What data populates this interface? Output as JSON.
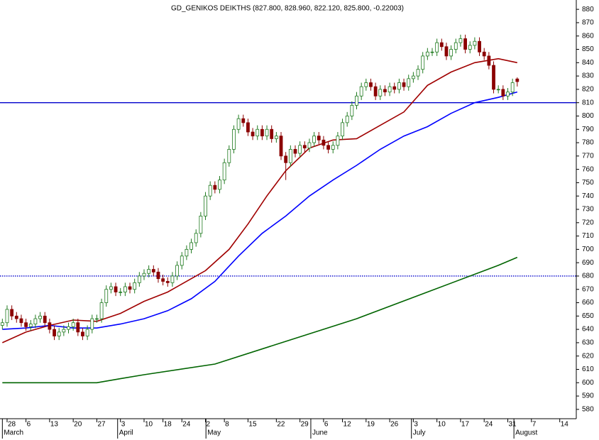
{
  "chart_data": {
    "type": "candlestick",
    "title": "GD_GENIKOS DEIKTHS (827.800, 828.960, 822.120, 825.800, -0.22003)",
    "xlim": [
      -0.5,
      121.5
    ],
    "ylim": [
      573,
      887
    ],
    "yticks": [
      580,
      590,
      600,
      610,
      620,
      630,
      640,
      650,
      660,
      670,
      680,
      690,
      700,
      710,
      720,
      730,
      740,
      750,
      760,
      770,
      780,
      790,
      800,
      810,
      820,
      830,
      840,
      850,
      860,
      870,
      880
    ],
    "xticks": [
      {
        "value": 1,
        "label": "28"
      },
      {
        "value": 5,
        "label": "6"
      },
      {
        "value": 10,
        "label": "13"
      },
      {
        "value": 15,
        "label": "20"
      },
      {
        "value": 20,
        "label": "27"
      },
      {
        "value": 25,
        "label": "3"
      },
      {
        "value": 30,
        "label": "10"
      },
      {
        "value": 34,
        "label": "18"
      },
      {
        "value": 38,
        "label": "24"
      },
      {
        "value": 43,
        "label": "2"
      },
      {
        "value": 47,
        "label": "8"
      },
      {
        "value": 52,
        "label": "15"
      },
      {
        "value": 58,
        "label": "22"
      },
      {
        "value": 63,
        "label": "29"
      },
      {
        "value": 68,
        "label": "6"
      },
      {
        "value": 72,
        "label": "12"
      },
      {
        "value": 77,
        "label": "19"
      },
      {
        "value": 82,
        "label": "26"
      },
      {
        "value": 87,
        "label": "3"
      },
      {
        "value": 92,
        "label": "10"
      },
      {
        "value": 97,
        "label": "17"
      },
      {
        "value": 102,
        "label": "24"
      },
      {
        "value": 107,
        "label": "31"
      },
      {
        "value": 112,
        "label": "7"
      },
      {
        "value": 118,
        "label": "14"
      }
    ],
    "month_labels": [
      {
        "value": 0,
        "label": "March"
      },
      {
        "value": 24.4,
        "label": "April"
      },
      {
        "value": 43.1,
        "label": "May"
      },
      {
        "value": 65.3,
        "label": "June"
      },
      {
        "value": 86.6,
        "label": "July"
      },
      {
        "value": 108.3,
        "label": "August"
      }
    ],
    "up_color": "#1f7a1f",
    "down_color": "#8b0000",
    "open": [
      643,
      645,
      655,
      650,
      648,
      645,
      642,
      644,
      648,
      650,
      645,
      640,
      635,
      638,
      640,
      642,
      645,
      638,
      635,
      640,
      648,
      648,
      660,
      670,
      672,
      668,
      668,
      672,
      670,
      675,
      680,
      682,
      685,
      683,
      678,
      676,
      675,
      680,
      688,
      695,
      700,
      705,
      712,
      725,
      740,
      748,
      745,
      752,
      765,
      775,
      790,
      798,
      795,
      788,
      785,
      790,
      785,
      790,
      783,
      785,
      770,
      765,
      775,
      772,
      778,
      776,
      780,
      785,
      782,
      778,
      775,
      778,
      785,
      795,
      800,
      808,
      815,
      822,
      825,
      822,
      815,
      820,
      818,
      822,
      820,
      825,
      822,
      828,
      830,
      835,
      845,
      848,
      848,
      855,
      852,
      845,
      850,
      855,
      858,
      850,
      853,
      856,
      848,
      845,
      838,
      820,
      820,
      815,
      818,
      827.8
    ],
    "high": [
      648,
      658,
      658,
      653,
      651,
      648,
      647,
      651,
      653,
      653,
      648,
      643,
      641,
      643,
      645,
      648,
      648,
      641,
      643,
      651,
      651,
      663,
      673,
      675,
      675,
      671,
      675,
      675,
      678,
      683,
      685,
      688,
      688,
      686,
      681,
      679,
      683,
      691,
      698,
      703,
      708,
      715,
      728,
      743,
      751,
      751,
      755,
      768,
      778,
      793,
      801,
      801,
      798,
      791,
      793,
      793,
      793,
      793,
      788,
      788,
      773,
      778,
      778,
      781,
      781,
      783,
      788,
      788,
      785,
      781,
      781,
      788,
      798,
      803,
      811,
      818,
      825,
      828,
      828,
      825,
      823,
      823,
      825,
      825,
      828,
      828,
      831,
      833,
      838,
      848,
      851,
      851,
      858,
      858,
      855,
      853,
      858,
      861,
      861,
      856,
      859,
      859,
      851,
      848,
      841,
      823,
      823,
      821,
      828,
      828.96
    ],
    "low": [
      640,
      642,
      647,
      645,
      642,
      639,
      639,
      641,
      645,
      642,
      637,
      632,
      632,
      635,
      637,
      639,
      635,
      632,
      632,
      637,
      645,
      645,
      657,
      667,
      665,
      665,
      665,
      667,
      667,
      672,
      677,
      679,
      680,
      675,
      673,
      672,
      672,
      677,
      685,
      692,
      697,
      702,
      709,
      722,
      737,
      742,
      742,
      749,
      762,
      772,
      787,
      792,
      785,
      782,
      782,
      782,
      782,
      780,
      780,
      767,
      752,
      762,
      769,
      769,
      773,
      773,
      777,
      779,
      775,
      772,
      772,
      775,
      782,
      792,
      797,
      805,
      812,
      819,
      819,
      812,
      812,
      815,
      815,
      817,
      817,
      819,
      819,
      825,
      827,
      832,
      842,
      845,
      845,
      849,
      842,
      842,
      847,
      852,
      847,
      847,
      850,
      845,
      842,
      835,
      817,
      817,
      812,
      812,
      815,
      822.12
    ],
    "close": [
      645,
      655,
      650,
      648,
      645,
      642,
      644,
      648,
      650,
      645,
      640,
      635,
      638,
      640,
      642,
      645,
      638,
      635,
      640,
      648,
      648,
      660,
      670,
      672,
      668,
      668,
      672,
      670,
      675,
      680,
      682,
      685,
      683,
      678,
      676,
      675,
      680,
      688,
      695,
      700,
      705,
      712,
      725,
      740,
      748,
      745,
      752,
      765,
      775,
      790,
      798,
      795,
      788,
      785,
      790,
      785,
      790,
      783,
      785,
      770,
      765,
      775,
      772,
      778,
      776,
      780,
      785,
      782,
      778,
      775,
      778,
      785,
      795,
      800,
      808,
      815,
      822,
      825,
      822,
      815,
      820,
      818,
      822,
      820,
      825,
      822,
      828,
      830,
      835,
      845,
      848,
      848,
      855,
      852,
      845,
      850,
      855,
      858,
      850,
      853,
      856,
      848,
      845,
      838,
      820,
      820,
      815,
      818,
      825,
      825.8
    ],
    "lines": [
      {
        "color": "#a00000",
        "x": [
          0,
          5,
          10,
          15,
          20,
          25,
          30,
          35,
          38,
          43,
          48,
          52,
          56,
          60,
          65,
          70,
          75,
          80,
          85,
          90,
          95,
          100,
          105,
          109
        ],
        "values": [
          630,
          638,
          643,
          647,
          646,
          652,
          661,
          668,
          674,
          684,
          700,
          719,
          740,
          759,
          776,
          782,
          783,
          793,
          803,
          823,
          833,
          840,
          843,
          840
        ]
      },
      {
        "color": "#0000ff",
        "x": [
          0,
          5,
          10,
          15,
          20,
          25,
          30,
          35,
          40,
          45,
          50,
          55,
          60,
          65,
          70,
          75,
          80,
          85,
          90,
          95,
          100,
          105,
          109
        ],
        "values": [
          640,
          641,
          643,
          641,
          641,
          644,
          648,
          654,
          663,
          676,
          695,
          712,
          725,
          740,
          752,
          763,
          775,
          785,
          792,
          802,
          810,
          814,
          818
        ]
      },
      {
        "color": "#006400",
        "x": [
          0,
          20,
          25,
          30,
          45,
          60,
          75,
          90,
          105,
          109
        ],
        "values": [
          600,
          600,
          603,
          606,
          614,
          631,
          648,
          668,
          688,
          694
        ]
      }
    ],
    "hlines": [
      {
        "value": 810,
        "color": "#0000cc",
        "style": "solid"
      },
      {
        "value": 680,
        "color": "#0000cc",
        "style": "dotted"
      }
    ]
  }
}
